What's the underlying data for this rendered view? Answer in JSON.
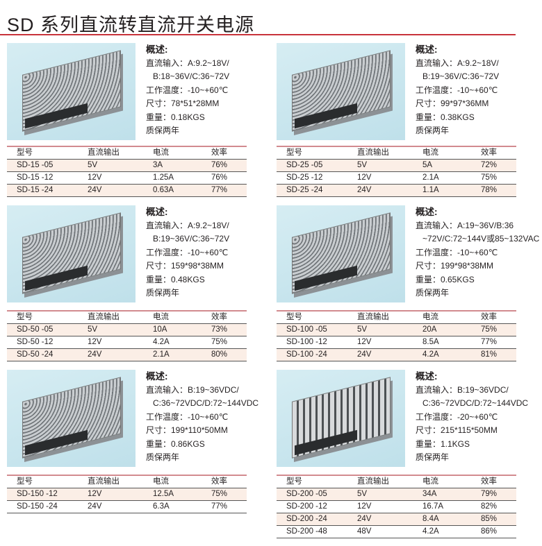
{
  "title": "SD 系列直流转直流开关电源",
  "headers": [
    "型号",
    "直流输出",
    "电流",
    "效率"
  ],
  "products": [
    {
      "spec": {
        "heading": "概述:",
        "lines": [
          "直流输入：A:9.2~18V/",
          "B:18~36V/C:36~72V",
          "工作温度：-10~+60℃",
          "尺寸：78*51*28MM",
          "重量：0.18KGS",
          "质保两年"
        ]
      },
      "rows": [
        [
          "SD-15 -05",
          "5V",
          "3A",
          "76%"
        ],
        [
          "SD-15 -12",
          "12V",
          "1.25A",
          "76%"
        ],
        [
          "SD-15 -24",
          "24V",
          "0.63A",
          "77%"
        ]
      ]
    },
    {
      "spec": {
        "heading": "概述:",
        "lines": [
          "直流输入：A:9.2~18V/",
          "B:19~36V/C:36~72V",
          "工作温度：-10~+60℃",
          "尺寸：99*97*36MM",
          "重量：0.38KGS",
          "质保两年"
        ]
      },
      "rows": [
        [
          "SD-25 -05",
          "5V",
          "5A",
          "72%"
        ],
        [
          "SD-25 -12",
          "12V",
          "2.1A",
          "75%"
        ],
        [
          "SD-25 -24",
          "24V",
          "1.1A",
          "78%"
        ]
      ]
    },
    {
      "spec": {
        "heading": "概述:",
        "lines": [
          "直流输入：A:9.2~18V/",
          "B:19~36V/C:36~72V",
          "工作温度：-10~+60℃",
          "尺寸：159*98*38MM",
          "重量：0.48KGS",
          "质保两年"
        ]
      },
      "rows": [
        [
          "SD-50 -05",
          "5V",
          "10A",
          "73%"
        ],
        [
          "SD-50 -12",
          "12V",
          "4.2A",
          "75%"
        ],
        [
          "SD-50 -24",
          "24V",
          "2.1A",
          "80%"
        ]
      ]
    },
    {
      "spec": {
        "heading": "概述:",
        "lines": [
          "直流输入：A:19~36V/B:36",
          "~72V/C:72~144V或85~132VAC",
          "工作温度：-10~+60℃",
          "尺寸：199*98*38MM",
          "重量：0.65KGS",
          "质保两年"
        ]
      },
      "rows": [
        [
          "SD-100 -05",
          "5V",
          "20A",
          "75%"
        ],
        [
          "SD-100 -12",
          "12V",
          "8.5A",
          "77%"
        ],
        [
          "SD-100 -24",
          "24V",
          "4.2A",
          "81%"
        ]
      ]
    },
    {
      "spec": {
        "heading": "概述:",
        "lines": [
          "直流输入：B:19~36VDC/",
          "C:36~72VDC/D:72~144VDC",
          "工作温度：-10~+60℃",
          "尺寸：199*110*50MM",
          "重量：0.86KGS",
          "质保两年"
        ]
      },
      "rows": [
        [
          "SD-150 -12",
          "12V",
          "12.5A",
          "75%"
        ],
        [
          "SD-150 -24",
          "24V",
          "6.3A",
          "77%"
        ]
      ]
    },
    {
      "spec": {
        "heading": "概述:",
        "lines": [
          "直流输入：B:19~36VDC/",
          "C:36~72VDC/D:72~144VDC",
          "工作温度：-20~+60℃",
          "尺寸：215*115*50MM",
          "重量：1.1KGS",
          "质保两年"
        ]
      },
      "rows": [
        [
          "SD-200 -05",
          "5V",
          "34A",
          "79%"
        ],
        [
          "SD-200 -12",
          "12V",
          "16.7A",
          "82%"
        ],
        [
          "SD-200 -24",
          "24V",
          "8.4A",
          "85%"
        ],
        [
          "SD-200 -48",
          "48V",
          "4.2A",
          "86%"
        ]
      ]
    }
  ]
}
